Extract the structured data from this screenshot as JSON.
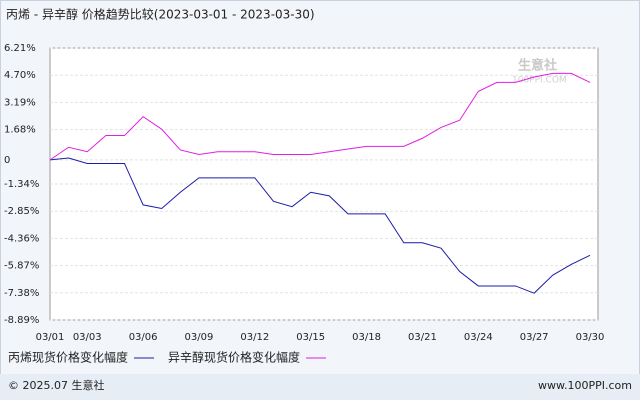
{
  "chart_data": {
    "type": "line",
    "title": "丙烯 - 异辛醇 价格趋势比较(2023-03-01 - 2023-03-30)",
    "categories": [
      "03/01",
      null,
      "03/03",
      null,
      null,
      "03/06",
      null,
      null,
      "03/09",
      null,
      null,
      "03/12",
      null,
      null,
      "03/15",
      null,
      null,
      "03/18",
      null,
      null,
      "03/21",
      null,
      null,
      "03/24",
      null,
      null,
      "03/27",
      null,
      null,
      "03/30"
    ],
    "series": [
      {
        "name": "丙烯现货价格变化幅度",
        "color": "#1c1ca8",
        "values": [
          0,
          0.1,
          -0.2,
          -0.2,
          -0.2,
          -2.5,
          -2.7,
          -1.8,
          -1.0,
          -1.0,
          -1.0,
          -1.0,
          -2.3,
          -2.6,
          -1.8,
          -2.0,
          -3.0,
          -3.0,
          -3.0,
          -4.6,
          -4.6,
          -4.9,
          -6.2,
          -7.0,
          -7.0,
          -7.0,
          -7.4,
          -6.4,
          -5.8,
          -5.3
        ]
      },
      {
        "name": "异辛醇现货价格变化幅度",
        "color": "#e020e0",
        "values": [
          0,
          0.7,
          0.45,
          1.35,
          1.35,
          2.4,
          1.7,
          0.55,
          0.3,
          0.45,
          0.45,
          0.45,
          0.3,
          0.3,
          0.3,
          0.45,
          0.6,
          0.75,
          0.75,
          0.75,
          1.2,
          1.8,
          2.2,
          3.8,
          4.3,
          4.3,
          4.6,
          4.8,
          4.8,
          4.3
        ]
      }
    ],
    "ylim": [
      -8.89,
      6.21
    ],
    "yticks": [
      {
        "value": 6.21,
        "label": "6.21%"
      },
      {
        "value": 4.7,
        "label": "4.70%"
      },
      {
        "value": 3.19,
        "label": "3.19%"
      },
      {
        "value": 1.68,
        "label": "1.68%"
      },
      0,
      {
        "value": -1.34,
        "label": "-1.34%"
      },
      {
        "value": -2.85,
        "label": "-2.85%"
      },
      {
        "value": -4.36,
        "label": "-4.36%"
      },
      {
        "value": -5.87,
        "label": "-5.87%"
      },
      {
        "value": -7.38,
        "label": "-7.38%"
      },
      {
        "value": -8.89,
        "label": "-8.89%"
      }
    ],
    "grid": true,
    "watermark": [
      "生意社",
      "100PPI.COM"
    ]
  },
  "footer": {
    "left": "© 2025.07 生意社",
    "right": "www.100PPI.com"
  }
}
